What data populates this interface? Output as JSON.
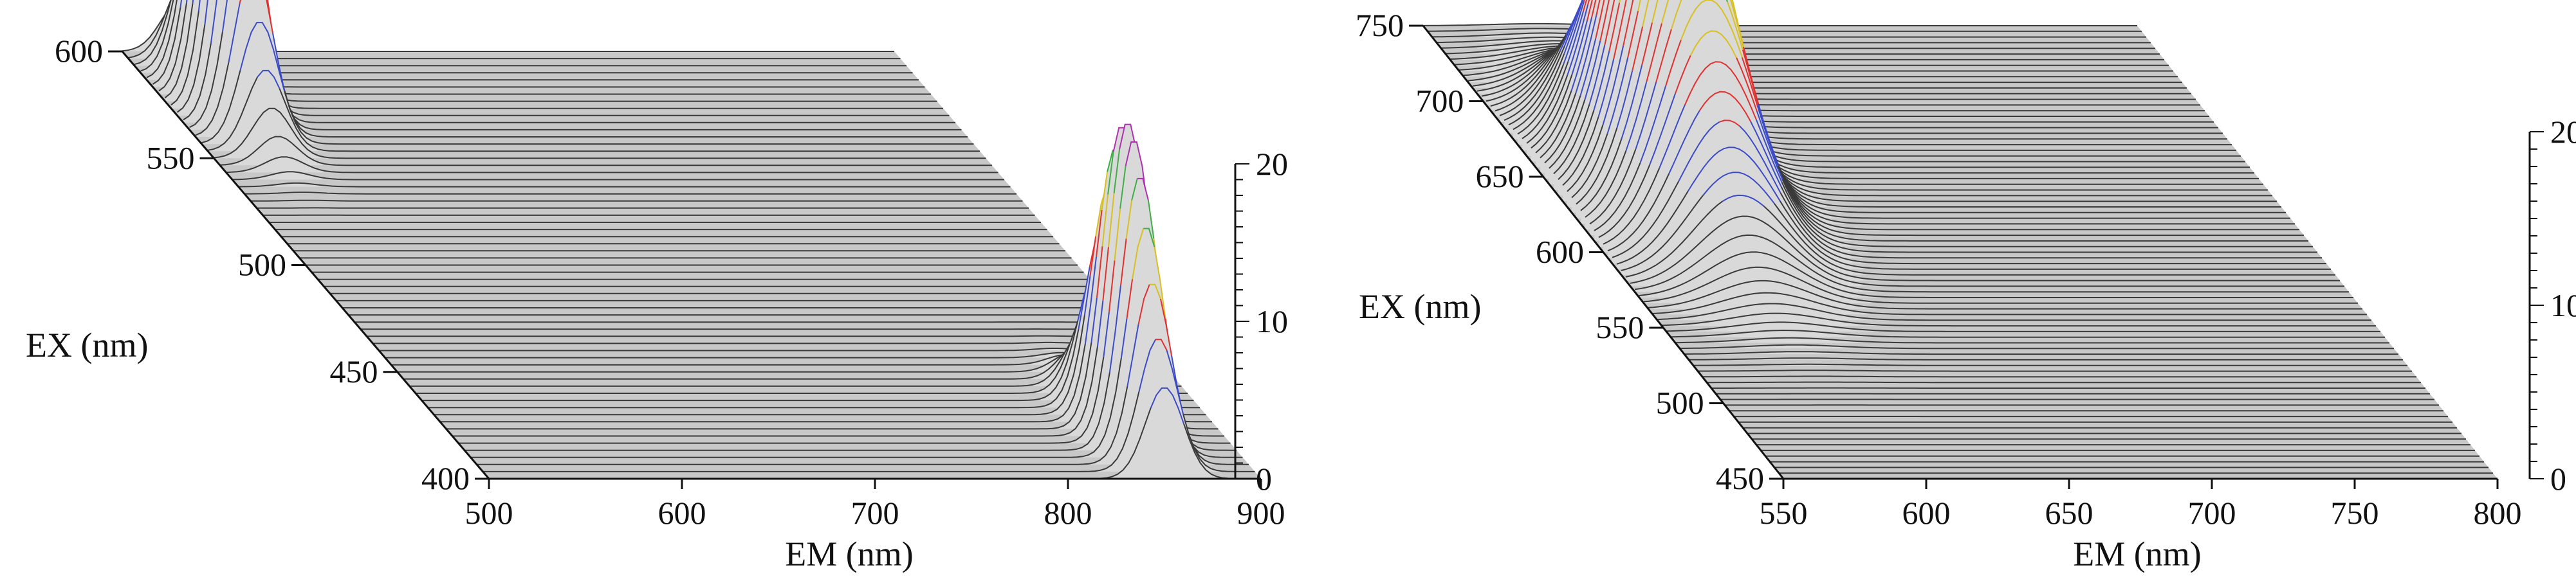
{
  "chart_data": [
    {
      "type": "surface",
      "xlabel": "EM (nm)",
      "ylabel": "EX (nm)",
      "zlabel": "",
      "x_ticks": [
        500,
        600,
        700,
        800,
        900
      ],
      "y_ticks": [
        400,
        450,
        500,
        550,
        600
      ],
      "z_ticks": [
        0,
        10,
        20
      ],
      "xlim": [
        500,
        900
      ],
      "ylim": [
        400,
        600
      ],
      "zlim": [
        0,
        20
      ],
      "peaks": [
        {
          "em": 530,
          "ex": 575,
          "intensity": 22
        },
        {
          "em": 850,
          "ex": 420,
          "intensity": 20
        }
      ]
    },
    {
      "type": "surface",
      "xlabel": "EM (nm)",
      "ylabel": "EX (nm)",
      "zlabel": "",
      "x_ticks": [
        550,
        600,
        650,
        700,
        750,
        800
      ],
      "y_ticks": [
        450,
        500,
        550,
        600,
        650,
        700,
        750
      ],
      "z_ticks": [
        0,
        10,
        20
      ],
      "xlim": [
        550,
        800
      ],
      "ylim": [
        450,
        750
      ],
      "zlim": [
        0,
        20
      ],
      "peaks": [
        {
          "em": 590,
          "ex": 640,
          "intensity": 22
        }
      ]
    }
  ],
  "colors": {
    "mesh": "#3a3a3a",
    "surface_fill": "#9a9a9a",
    "band_blue": "#3b4bc8",
    "band_red": "#e03030",
    "band_green": "#3fae45",
    "band_yellow": "#d8c020",
    "band_magenta": "#b030b0"
  }
}
